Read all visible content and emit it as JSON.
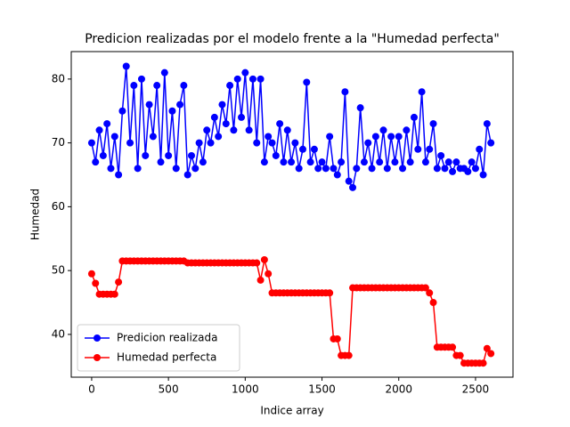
{
  "chart_data": {
    "type": "line",
    "title": "Predicion realizadas por el modelo frente a la \"Humedad perfecta\"",
    "x_label": "Indice array",
    "y_label": "Humedad",
    "x": [
      0,
      25,
      50,
      75,
      100,
      125,
      150,
      175,
      200,
      225,
      250,
      275,
      300,
      325,
      350,
      375,
      400,
      425,
      450,
      475,
      500,
      525,
      550,
      575,
      600,
      625,
      650,
      675,
      700,
      725,
      750,
      775,
      800,
      825,
      850,
      875,
      900,
      925,
      950,
      975,
      1000,
      1025,
      1050,
      1075,
      1100,
      1125,
      1150,
      1175,
      1200,
      1225,
      1250,
      1275,
      1300,
      1325,
      1350,
      1375,
      1400,
      1425,
      1450,
      1475,
      1500,
      1525,
      1550,
      1575,
      1600,
      1625,
      1650,
      1675,
      1700,
      1725,
      1750,
      1775,
      1800,
      1825,
      1850,
      1875,
      1900,
      1925,
      1950,
      1975,
      2000,
      2025,
      2050,
      2075,
      2100,
      2125,
      2150,
      2175,
      2200,
      2225,
      2250,
      2275,
      2300,
      2325,
      2350,
      2375,
      2400,
      2425,
      2450,
      2475,
      2500,
      2525,
      2550,
      2575,
      2600
    ],
    "series": [
      {
        "name": "Predicion realizada",
        "color": "#0000ff",
        "values": [
          70,
          67,
          72,
          68,
          73,
          66,
          71,
          65,
          75,
          82,
          70,
          79,
          66,
          80,
          68,
          76,
          71,
          79,
          67,
          81,
          68,
          75,
          66,
          76,
          79,
          65,
          68,
          66,
          70,
          67,
          72,
          70,
          74,
          71,
          76,
          73,
          79,
          72,
          80,
          74,
          81,
          72,
          80,
          70,
          80,
          67,
          71,
          70,
          68,
          73,
          67,
          72,
          67,
          70,
          66,
          69,
          79.5,
          67,
          69,
          66,
          67,
          66,
          71,
          66,
          65,
          67,
          78,
          64,
          63,
          66,
          75.5,
          67,
          70,
          66,
          71,
          67,
          72,
          66,
          71,
          67,
          71,
          66,
          72,
          67,
          74,
          69,
          78,
          67,
          69,
          73,
          66,
          68,
          66,
          67,
          65.5,
          67,
          66,
          66,
          65.5,
          67,
          66,
          69,
          65,
          73,
          70
        ]
      },
      {
        "name": "Humedad perfecta",
        "color": "#ff0000",
        "values": [
          49.5,
          48,
          46.3,
          46.3,
          46.3,
          46.3,
          46.3,
          48.2,
          51.5,
          51.5,
          51.5,
          51.5,
          51.5,
          51.5,
          51.5,
          51.5,
          51.5,
          51.5,
          51.5,
          51.5,
          51.5,
          51.5,
          51.5,
          51.5,
          51.5,
          51.2,
          51.2,
          51.2,
          51.2,
          51.2,
          51.2,
          51.2,
          51.2,
          51.2,
          51.2,
          51.2,
          51.2,
          51.2,
          51.2,
          51.2,
          51.2,
          51.2,
          51.2,
          51.2,
          48.5,
          51.7,
          49.5,
          46.5,
          46.5,
          46.5,
          46.5,
          46.5,
          46.5,
          46.5,
          46.5,
          46.5,
          46.5,
          46.5,
          46.5,
          46.5,
          46.5,
          46.5,
          46.5,
          39.3,
          39.3,
          36.7,
          36.7,
          36.7,
          47.3,
          47.3,
          47.3,
          47.3,
          47.3,
          47.3,
          47.3,
          47.3,
          47.3,
          47.3,
          47.3,
          47.3,
          47.3,
          47.3,
          47.3,
          47.3,
          47.3,
          47.3,
          47.3,
          47.3,
          46.5,
          45,
          38,
          38,
          38,
          38,
          38,
          36.7,
          36.7,
          35.5,
          35.5,
          35.5,
          35.5,
          35.5,
          35.5,
          37.8,
          37
        ]
      }
    ],
    "xlim": [
      -133,
      2744
    ],
    "ylim": [
      33.3,
      84.3
    ],
    "xticks": [
      0,
      500,
      1000,
      1500,
      2000,
      2500
    ],
    "yticks": [
      40,
      50,
      60,
      70,
      80
    ],
    "legend": "lower left"
  }
}
